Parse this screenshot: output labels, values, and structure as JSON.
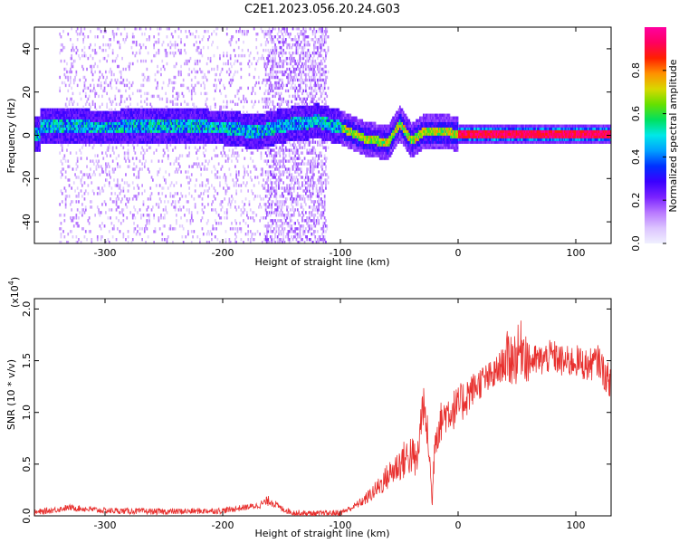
{
  "title": "C2E1.2023.056.20.24.G03",
  "colors": {
    "snr_line": "#e8302e",
    "rainbow": [
      "#f0f0ff",
      "#dcc4ff",
      "#b878ff",
      "#7a22ff",
      "#3a00ff",
      "#0030ff",
      "#00a0ff",
      "#00e8e8",
      "#00e060",
      "#66e000",
      "#d8d800",
      "#ff9000",
      "#ff2000",
      "#ff0060",
      "#ff00a0"
    ]
  },
  "chart_data": [
    {
      "type": "heatmap",
      "xlabel": "Height of straight line (km)",
      "ylabel": "Frequency (Hz)",
      "xlim": [
        -360,
        130
      ],
      "ylim": [
        -50,
        50
      ],
      "xticks": [
        -300,
        -200,
        -100,
        0,
        100
      ],
      "yticks": [
        -40,
        -20,
        0,
        20,
        40
      ],
      "colorbar": {
        "label": "Normalized spectral amplitude",
        "range": [
          0.0,
          1.0
        ],
        "ticks": [
          0.0,
          0.2,
          0.4,
          0.6,
          0.8
        ]
      },
      "ridge": {
        "description_points": [
          [
            -355,
            4
          ],
          [
            -300,
            3
          ],
          [
            -250,
            4
          ],
          [
            -200,
            3
          ],
          [
            -170,
            1
          ],
          [
            -150,
            4
          ],
          [
            -120,
            6
          ],
          [
            -100,
            3
          ],
          [
            -80,
            -2
          ],
          [
            -60,
            -4
          ],
          [
            -50,
            5
          ],
          [
            -40,
            -3
          ],
          [
            -30,
            1
          ],
          [
            -10,
            1
          ],
          [
            0,
            0
          ],
          [
            50,
            0
          ],
          [
            100,
            0
          ],
          [
            130,
            0
          ]
        ],
        "peak_amplitude_region": [
          -10,
          130
        ]
      }
    },
    {
      "type": "line",
      "xlabel": "Height of straight line (km)",
      "ylabel": "SNR (10 * v/v)",
      "y_exponent": "(x10",
      "y_exponent_power": "4",
      "y_exponent_close": ")",
      "xlim": [
        -360,
        130
      ],
      "ylim": [
        0,
        2.1
      ],
      "xticks": [
        -300,
        -200,
        -100,
        0,
        100
      ],
      "yticks": [
        "0.0",
        "0.5",
        "1.0",
        "1.5",
        "2.0"
      ],
      "series": [
        {
          "x": [
            -360,
            -330,
            -300,
            -250,
            -200,
            -170,
            -160,
            -150,
            -140,
            -120,
            -100,
            -90,
            -80,
            -70,
            -60,
            -50,
            -40,
            -35,
            -30,
            -25,
            -22,
            -20,
            -15,
            -10,
            0,
            10,
            20,
            30,
            40,
            50,
            55,
            60,
            70,
            80,
            90,
            100,
            110,
            120,
            125,
            130
          ],
          "y": [
            0.03,
            0.08,
            0.05,
            0.04,
            0.05,
            0.1,
            0.15,
            0.07,
            0.03,
            0.02,
            0.03,
            0.08,
            0.15,
            0.25,
            0.38,
            0.5,
            0.6,
            0.5,
            1.1,
            0.7,
            0.1,
            0.75,
            0.9,
            1.0,
            1.05,
            1.2,
            1.3,
            1.35,
            1.5,
            1.55,
            1.65,
            1.5,
            1.5,
            1.55,
            1.48,
            1.5,
            1.45,
            1.5,
            1.35,
            1.3
          ]
        }
      ]
    }
  ]
}
